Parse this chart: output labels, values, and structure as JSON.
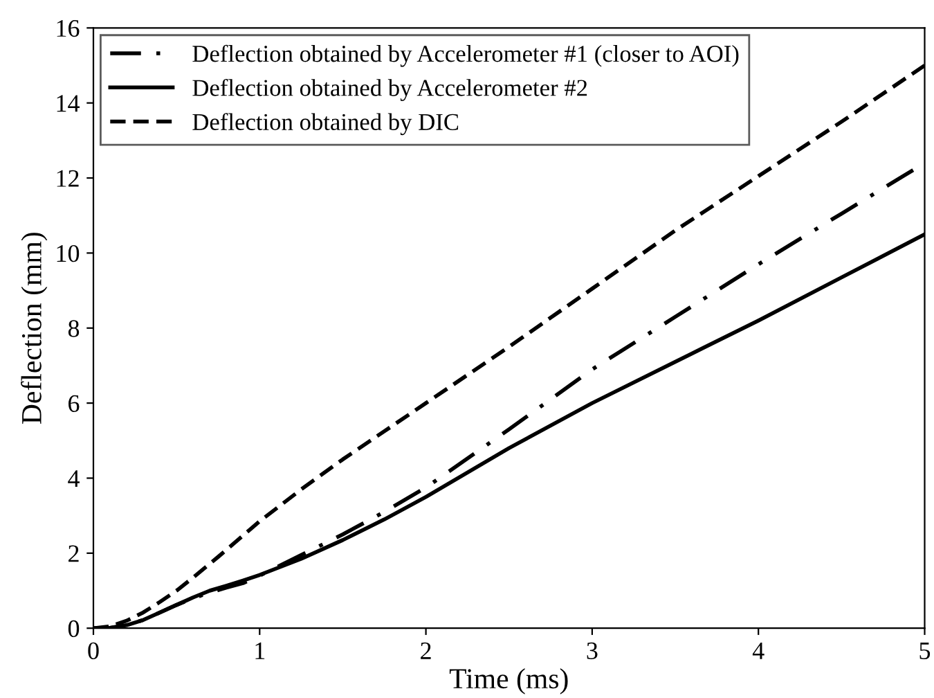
{
  "chart_data": {
    "type": "line",
    "xlabel": "Time (ms)",
    "ylabel": "Deflection (mm)",
    "xlim": [
      0,
      5
    ],
    "xticks": [
      0,
      1,
      2,
      3,
      4,
      5
    ],
    "ylim": [
      0,
      16
    ],
    "yticks": [
      0,
      2,
      4,
      6,
      8,
      10,
      12,
      14,
      16
    ],
    "grid": false,
    "legend": "top left",
    "marker": "none",
    "series": [
      {
        "name": "Deflection obtained by Accelerometer #1 (closer to AOI)",
        "color": "#000000",
        "line_style": "dashdot",
        "x": [
          0,
          0.1,
          0.2,
          0.3,
          0.4,
          0.5,
          0.6,
          0.7,
          0.8,
          0.9,
          1.0,
          1.25,
          1.5,
          1.75,
          2.0,
          2.5,
          3.0,
          3.5,
          4.0,
          4.5,
          5.0
        ],
        "values": [
          0,
          0.01,
          0.08,
          0.22,
          0.42,
          0.62,
          0.8,
          0.95,
          1.08,
          1.2,
          1.4,
          1.95,
          2.5,
          3.1,
          3.75,
          5.3,
          6.9,
          8.3,
          9.7,
          11.05,
          12.4
        ]
      },
      {
        "name": "Deflection obtained by Accelerometer #2",
        "color": "#000000",
        "line_style": "solid",
        "x": [
          0,
          0.1,
          0.2,
          0.3,
          0.4,
          0.5,
          0.6,
          0.7,
          0.8,
          0.9,
          1.0,
          1.25,
          1.5,
          1.75,
          2.0,
          2.5,
          3.0,
          3.5,
          4.0,
          4.5,
          5.0
        ],
        "values": [
          0,
          0.01,
          0.08,
          0.22,
          0.42,
          0.62,
          0.82,
          1.0,
          1.13,
          1.27,
          1.42,
          1.85,
          2.35,
          2.9,
          3.5,
          4.8,
          6.0,
          7.1,
          8.2,
          9.35,
          10.5
        ]
      },
      {
        "name": "Deflection obtained by DIC",
        "color": "#000000",
        "line_style": "dashed",
        "x": [
          0,
          0.1,
          0.2,
          0.3,
          0.4,
          0.5,
          0.6,
          0.75,
          1.0,
          1.25,
          1.5,
          1.75,
          2.0,
          2.5,
          3.0,
          3.5,
          4.0,
          4.5,
          5.0
        ],
        "values": [
          0,
          0.05,
          0.2,
          0.42,
          0.7,
          1.0,
          1.35,
          1.9,
          2.85,
          3.7,
          4.5,
          5.25,
          6.0,
          7.5,
          9.05,
          10.6,
          12.05,
          13.5,
          15.0
        ]
      }
    ]
  }
}
